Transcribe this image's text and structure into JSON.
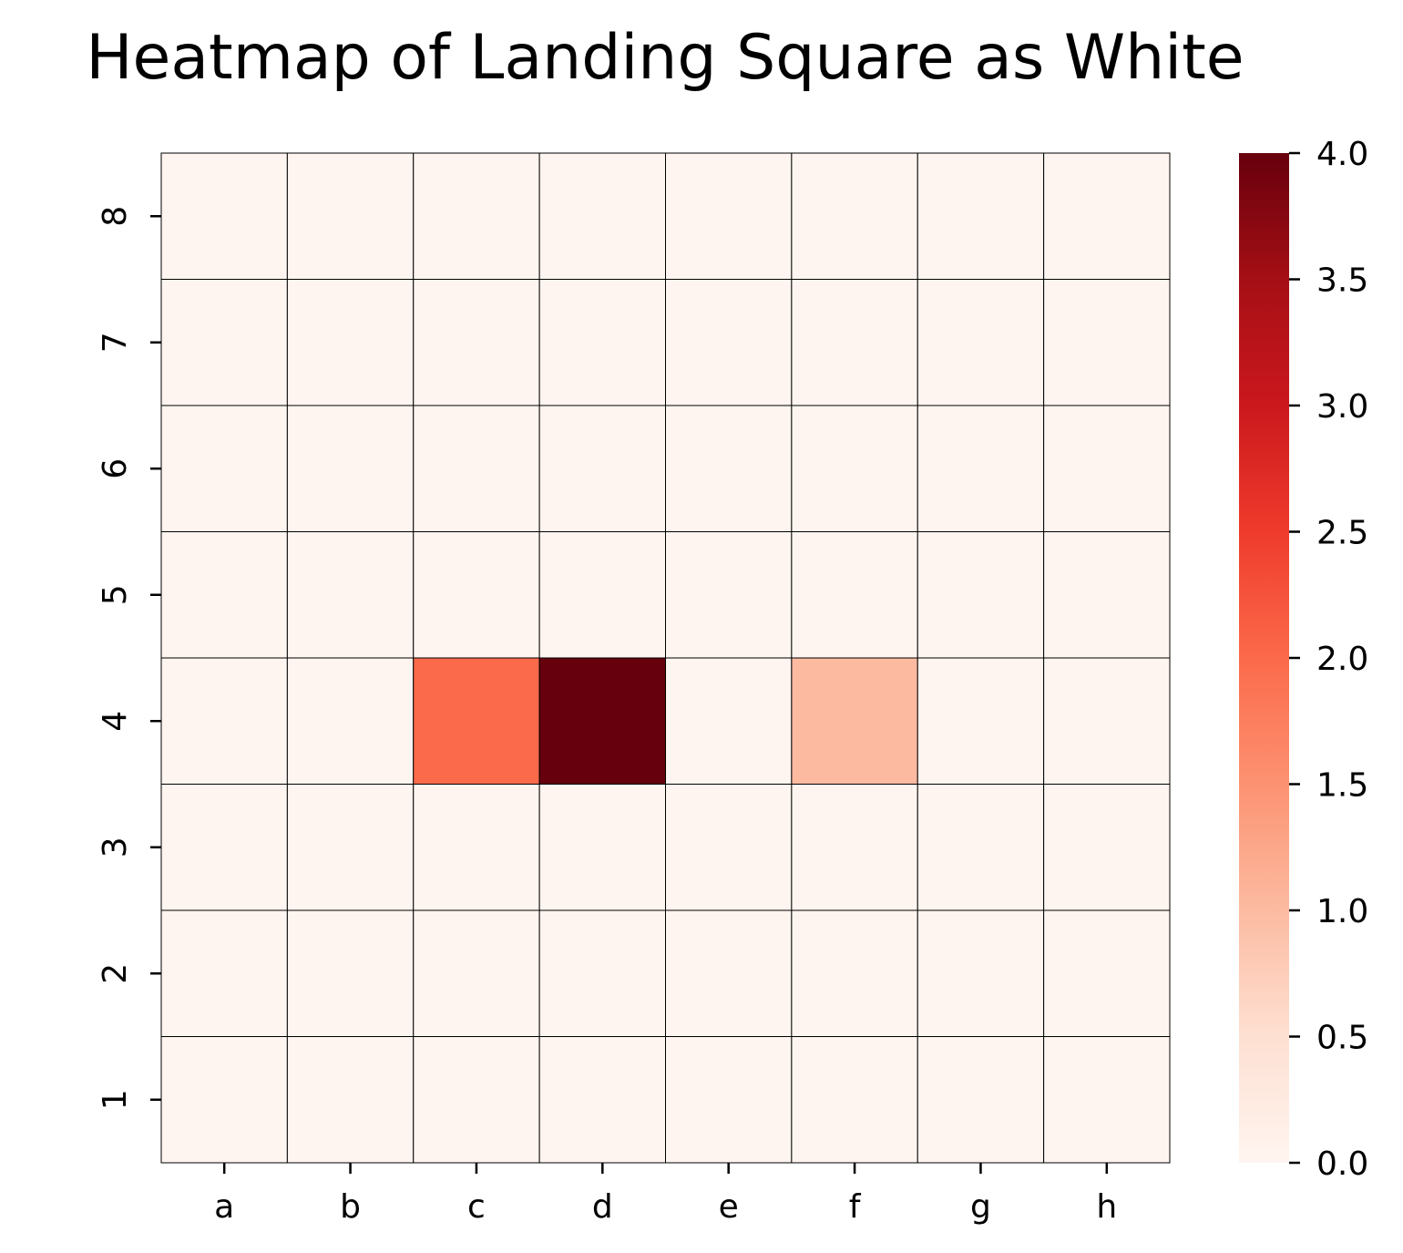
{
  "chart_data": {
    "type": "heatmap",
    "title": "Heatmap of Landing Square as White",
    "x_categories": [
      "a",
      "b",
      "c",
      "d",
      "e",
      "f",
      "g",
      "h"
    ],
    "y_categories": [
      "8",
      "7",
      "6",
      "5",
      "4",
      "3",
      "2",
      "1"
    ],
    "values": [
      [
        0,
        0,
        0,
        0,
        0,
        0,
        0,
        0
      ],
      [
        0,
        0,
        0,
        0,
        0,
        0,
        0,
        0
      ],
      [
        0,
        0,
        0,
        0,
        0,
        0,
        0,
        0
      ],
      [
        0,
        0,
        0,
        0,
        0,
        0,
        0,
        0
      ],
      [
        0,
        0,
        2,
        4,
        0,
        1,
        0,
        0
      ],
      [
        0,
        0,
        0,
        0,
        0,
        0,
        0,
        0
      ],
      [
        0,
        0,
        0,
        0,
        0,
        0,
        0,
        0
      ],
      [
        0,
        0,
        0,
        0,
        0,
        0,
        0,
        0
      ]
    ],
    "colorbar": {
      "range": [
        0,
        4
      ],
      "ticks": [
        "0.0",
        "0.5",
        "1.0",
        "1.5",
        "2.0",
        "2.5",
        "3.0",
        "3.5",
        "4.0"
      ],
      "colormap": "Reds",
      "stops": [
        "#fff5f0",
        "#fee0d2",
        "#fcbba1",
        "#fc9272",
        "#fb6a4a",
        "#ef3b2c",
        "#cb181d",
        "#a50f15",
        "#67000d"
      ]
    },
    "cell_border_color": "#000000"
  }
}
